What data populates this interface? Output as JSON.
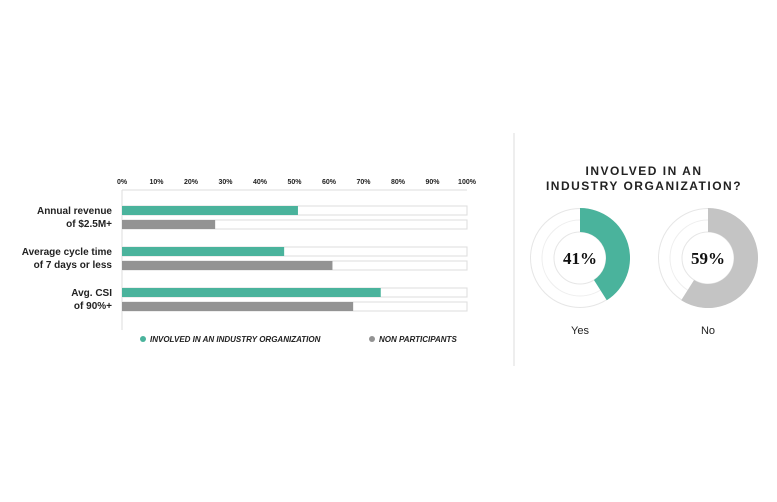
{
  "chart_data": [
    {
      "type": "bar",
      "orientation": "horizontal",
      "categories": [
        [
          "Annual revenue",
          "of $2.5M+"
        ],
        [
          "Average cycle time",
          "of 7 days or less"
        ],
        [
          "Avg. CSI",
          "of 90%+"
        ]
      ],
      "series": [
        {
          "name": "INVOLVED IN AN INDUSTRY ORGANIZATION",
          "color": "#4ab39c",
          "values": [
            51,
            47,
            75
          ]
        },
        {
          "name": "NON PARTICIPANTS",
          "color": "#939393",
          "values": [
            27,
            61,
            67
          ]
        }
      ],
      "xticks": [
        "0%",
        "10%",
        "20%",
        "30%",
        "40%",
        "50%",
        "60%",
        "70%",
        "80%",
        "90%",
        "100%"
      ],
      "xlim": [
        0,
        100
      ],
      "legend": "bottom"
    },
    {
      "type": "pie",
      "title": [
        "INVOLVED IN AN",
        "INDUSTRY ORGANIZATION?"
      ],
      "slices": [
        {
          "label": "Yes",
          "value": 41,
          "text": "41%",
          "color": "#4ab39c"
        },
        {
          "label": "No",
          "value": 59,
          "text": "59%",
          "color": "#c4c4c4"
        }
      ]
    }
  ]
}
